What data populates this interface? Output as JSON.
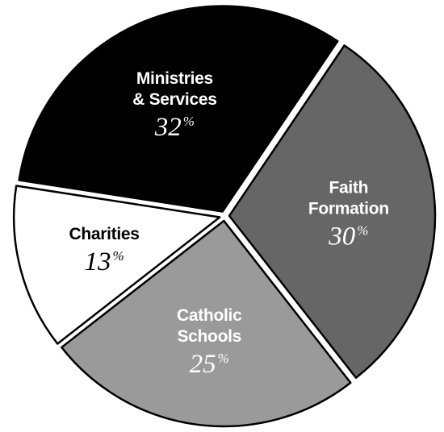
{
  "chart_data": {
    "type": "pie",
    "title": "",
    "slices": [
      {
        "label_lines": [
          "Faith",
          "Formation"
        ],
        "value": 30,
        "value_text": "30",
        "unit": "%",
        "color": "#666666",
        "text_color": "#ffffff",
        "exploded": true
      },
      {
        "label_lines": [
          "Catholic",
          "Schools"
        ],
        "value": 25,
        "value_text": "25",
        "unit": "%",
        "color": "#9a9a9a",
        "text_color": "#ffffff",
        "exploded": true
      },
      {
        "label_lines": [
          "Charities"
        ],
        "value": 13,
        "value_text": "13",
        "unit": "%",
        "color": "#ffffff",
        "text_color": "#000000",
        "exploded": true
      },
      {
        "label_lines": [
          "Ministries",
          "& Services"
        ],
        "value": 32,
        "value_text": "32",
        "unit": "%",
        "color": "#000000",
        "text_color": "#ffffff",
        "exploded": true
      }
    ]
  }
}
